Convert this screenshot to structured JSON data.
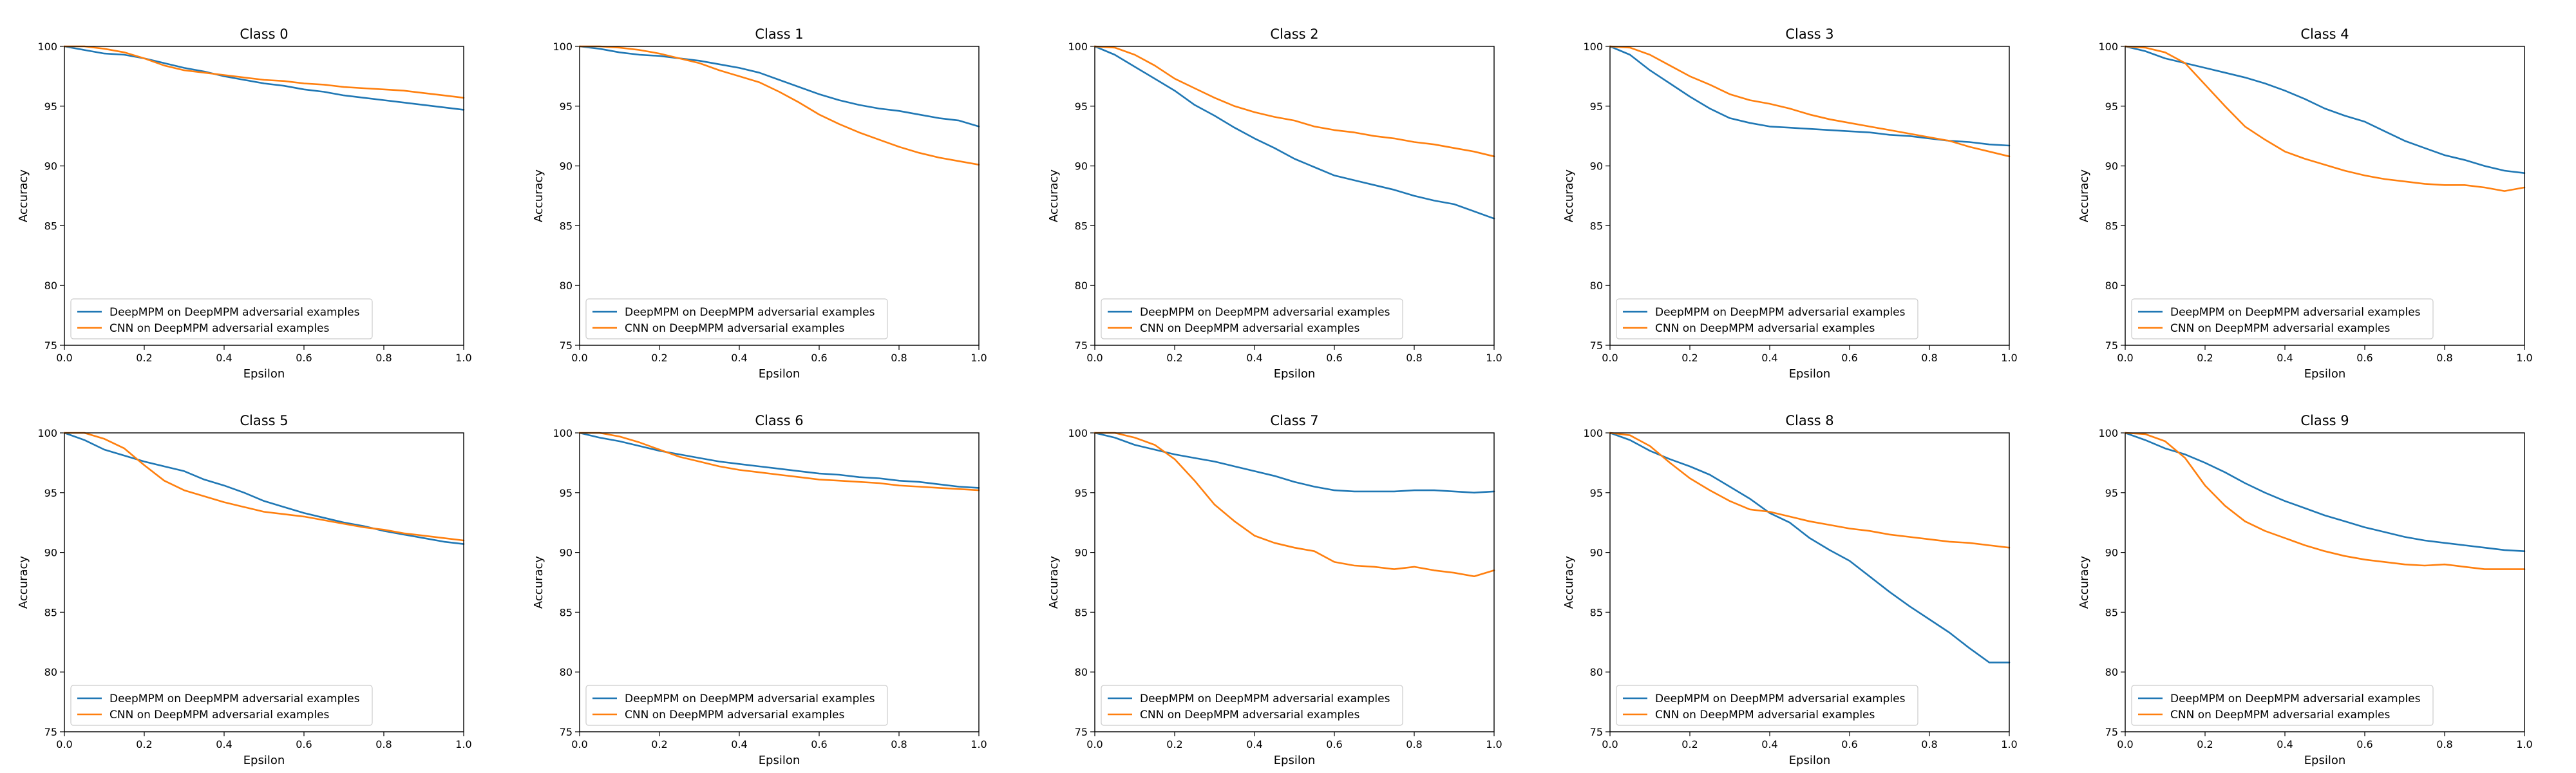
{
  "figure": {
    "series_colors": [
      "#1f77b4",
      "#ff7f0e"
    ]
  },
  "chart_data": [
    {
      "type": "line",
      "title": "Class 0",
      "xlabel": "Epsilon",
      "ylabel": "Accuracy",
      "xlim": [
        0,
        1
      ],
      "ylim": [
        75,
        100
      ],
      "xticks": [
        "0.0",
        "0.2",
        "0.4",
        "0.6",
        "0.8",
        "1.0"
      ],
      "yticks": [
        "75",
        "80",
        "85",
        "90",
        "95",
        "100"
      ],
      "legend_position": "lower-left",
      "x": [
        0,
        0.05,
        0.1,
        0.15,
        0.2,
        0.25,
        0.3,
        0.35,
        0.4,
        0.45,
        0.5,
        0.55,
        0.6,
        0.65,
        0.7,
        0.75,
        0.8,
        0.85,
        0.9,
        0.95,
        1.0
      ],
      "series": [
        {
          "name": "DeepMPM on DeepMPM adversarial examples",
          "values": [
            100,
            99.7,
            99.4,
            99.3,
            99.0,
            98.6,
            98.2,
            97.9,
            97.5,
            97.2,
            96.9,
            96.7,
            96.4,
            96.2,
            95.9,
            95.7,
            95.5,
            95.3,
            95.1,
            94.9,
            94.7
          ]
        },
        {
          "name": "CNN on DeepMPM adversarial examples",
          "values": [
            100,
            100,
            99.8,
            99.5,
            99.0,
            98.4,
            98.0,
            97.8,
            97.6,
            97.4,
            97.2,
            97.1,
            96.9,
            96.8,
            96.6,
            96.5,
            96.4,
            96.3,
            96.1,
            95.9,
            95.7
          ]
        }
      ]
    },
    {
      "type": "line",
      "title": "Class 1",
      "xlabel": "Epsilon",
      "ylabel": "Accuracy",
      "xlim": [
        0,
        1
      ],
      "ylim": [
        75,
        100
      ],
      "xticks": [
        "0.0",
        "0.2",
        "0.4",
        "0.6",
        "0.8",
        "1.0"
      ],
      "yticks": [
        "75",
        "80",
        "85",
        "90",
        "95",
        "100"
      ],
      "legend_position": "lower-left",
      "x": [
        0,
        0.05,
        0.1,
        0.15,
        0.2,
        0.25,
        0.3,
        0.35,
        0.4,
        0.45,
        0.5,
        0.55,
        0.6,
        0.65,
        0.7,
        0.75,
        0.8,
        0.85,
        0.9,
        0.95,
        1.0
      ],
      "series": [
        {
          "name": "DeepMPM on DeepMPM adversarial examples",
          "values": [
            100,
            99.8,
            99.5,
            99.3,
            99.2,
            99.0,
            98.8,
            98.5,
            98.2,
            97.8,
            97.2,
            96.6,
            96.0,
            95.5,
            95.1,
            94.8,
            94.6,
            94.3,
            94.0,
            93.8,
            93.3
          ]
        },
        {
          "name": "CNN on DeepMPM adversarial examples",
          "values": [
            100,
            100,
            99.9,
            99.7,
            99.4,
            99.0,
            98.6,
            98.0,
            97.5,
            97.0,
            96.2,
            95.3,
            94.3,
            93.5,
            92.8,
            92.2,
            91.6,
            91.1,
            90.7,
            90.4,
            90.1
          ]
        }
      ]
    },
    {
      "type": "line",
      "title": "Class 2",
      "xlabel": "Epsilon",
      "ylabel": "Accuracy",
      "xlim": [
        0,
        1
      ],
      "ylim": [
        75,
        100
      ],
      "xticks": [
        "0.0",
        "0.2",
        "0.4",
        "0.6",
        "0.8",
        "1.0"
      ],
      "yticks": [
        "75",
        "80",
        "85",
        "90",
        "95",
        "100"
      ],
      "legend_position": "lower-left",
      "x": [
        0,
        0.05,
        0.1,
        0.15,
        0.2,
        0.25,
        0.3,
        0.35,
        0.4,
        0.45,
        0.5,
        0.55,
        0.6,
        0.65,
        0.7,
        0.75,
        0.8,
        0.85,
        0.9,
        0.95,
        1.0
      ],
      "series": [
        {
          "name": "DeepMPM on DeepMPM adversarial examples",
          "values": [
            100,
            99.3,
            98.3,
            97.3,
            96.3,
            95.1,
            94.2,
            93.2,
            92.3,
            91.5,
            90.6,
            89.9,
            89.2,
            88.8,
            88.4,
            88.0,
            87.5,
            87.1,
            86.8,
            86.2,
            85.6
          ]
        },
        {
          "name": "CNN on DeepMPM adversarial examples",
          "values": [
            100,
            99.9,
            99.3,
            98.4,
            97.3,
            96.5,
            95.7,
            95.0,
            94.5,
            94.1,
            93.8,
            93.3,
            93.0,
            92.8,
            92.5,
            92.3,
            92.0,
            91.8,
            91.5,
            91.2,
            90.8
          ]
        }
      ]
    },
    {
      "type": "line",
      "title": "Class 3",
      "xlabel": "Epsilon",
      "ylabel": "Accuracy",
      "xlim": [
        0,
        1
      ],
      "ylim": [
        75,
        100
      ],
      "xticks": [
        "0.0",
        "0.2",
        "0.4",
        "0.6",
        "0.8",
        "1.0"
      ],
      "yticks": [
        "75",
        "80",
        "85",
        "90",
        "95",
        "100"
      ],
      "legend_position": "lower-left",
      "x": [
        0,
        0.05,
        0.1,
        0.15,
        0.2,
        0.25,
        0.3,
        0.35,
        0.4,
        0.45,
        0.5,
        0.55,
        0.6,
        0.65,
        0.7,
        0.75,
        0.8,
        0.85,
        0.9,
        0.95,
        1.0
      ],
      "series": [
        {
          "name": "DeepMPM on DeepMPM adversarial examples",
          "values": [
            100,
            99.3,
            98.0,
            96.9,
            95.8,
            94.8,
            94.0,
            93.6,
            93.3,
            93.2,
            93.1,
            93.0,
            92.9,
            92.8,
            92.6,
            92.5,
            92.3,
            92.1,
            92.0,
            91.8,
            91.7
          ]
        },
        {
          "name": "CNN on DeepMPM adversarial examples",
          "values": [
            100,
            99.9,
            99.3,
            98.4,
            97.5,
            96.8,
            96.0,
            95.5,
            95.2,
            94.8,
            94.3,
            93.9,
            93.6,
            93.3,
            93.0,
            92.7,
            92.4,
            92.1,
            91.6,
            91.2,
            90.8
          ]
        }
      ]
    },
    {
      "type": "line",
      "title": "Class 4",
      "xlabel": "Epsilon",
      "ylabel": "Accuracy",
      "xlim": [
        0,
        1
      ],
      "ylim": [
        75,
        100
      ],
      "xticks": [
        "0.0",
        "0.2",
        "0.4",
        "0.6",
        "0.8",
        "1.0"
      ],
      "yticks": [
        "75",
        "80",
        "85",
        "90",
        "95",
        "100"
      ],
      "legend_position": "lower-left",
      "x": [
        0,
        0.05,
        0.1,
        0.15,
        0.2,
        0.25,
        0.3,
        0.35,
        0.4,
        0.45,
        0.5,
        0.55,
        0.6,
        0.65,
        0.7,
        0.75,
        0.8,
        0.85,
        0.9,
        0.95,
        1.0
      ],
      "series": [
        {
          "name": "DeepMPM on DeepMPM adversarial examples",
          "values": [
            100,
            99.6,
            99.0,
            98.6,
            98.2,
            97.8,
            97.4,
            96.9,
            96.3,
            95.6,
            94.8,
            94.2,
            93.7,
            92.9,
            92.1,
            91.5,
            90.9,
            90.5,
            90.0,
            89.6,
            89.4
          ]
        },
        {
          "name": "CNN on DeepMPM adversarial examples",
          "values": [
            100,
            99.9,
            99.5,
            98.6,
            96.8,
            95.0,
            93.3,
            92.2,
            91.2,
            90.6,
            90.1,
            89.6,
            89.2,
            88.9,
            88.7,
            88.5,
            88.4,
            88.4,
            88.2,
            87.9,
            88.2
          ]
        }
      ]
    },
    {
      "type": "line",
      "title": "Class 5",
      "xlabel": "Epsilon",
      "ylabel": "Accuracy",
      "xlim": [
        0,
        1
      ],
      "ylim": [
        75,
        100
      ],
      "xticks": [
        "0.0",
        "0.2",
        "0.4",
        "0.6",
        "0.8",
        "1.0"
      ],
      "yticks": [
        "75",
        "80",
        "85",
        "90",
        "95",
        "100"
      ],
      "legend_position": "lower-left",
      "x": [
        0,
        0.05,
        0.1,
        0.15,
        0.2,
        0.25,
        0.3,
        0.35,
        0.4,
        0.45,
        0.5,
        0.55,
        0.6,
        0.65,
        0.7,
        0.75,
        0.8,
        0.85,
        0.9,
        0.95,
        1.0
      ],
      "series": [
        {
          "name": "DeepMPM on DeepMPM adversarial examples",
          "values": [
            100,
            99.4,
            98.6,
            98.1,
            97.6,
            97.2,
            96.8,
            96.1,
            95.6,
            95.0,
            94.3,
            93.8,
            93.3,
            92.9,
            92.5,
            92.2,
            91.8,
            91.5,
            91.2,
            90.9,
            90.7
          ]
        },
        {
          "name": "CNN on DeepMPM adversarial examples",
          "values": [
            100,
            100,
            99.5,
            98.7,
            97.3,
            96.0,
            95.2,
            94.7,
            94.2,
            93.8,
            93.4,
            93.2,
            93.0,
            92.7,
            92.4,
            92.1,
            91.9,
            91.6,
            91.4,
            91.2,
            91.0
          ]
        }
      ]
    },
    {
      "type": "line",
      "title": "Class 6",
      "xlabel": "Epsilon",
      "ylabel": "Accuracy",
      "xlim": [
        0,
        1
      ],
      "ylim": [
        75,
        100
      ],
      "xticks": [
        "0.0",
        "0.2",
        "0.4",
        "0.6",
        "0.8",
        "1.0"
      ],
      "yticks": [
        "75",
        "80",
        "85",
        "90",
        "95",
        "100"
      ],
      "legend_position": "lower-left",
      "x": [
        0,
        0.05,
        0.1,
        0.15,
        0.2,
        0.25,
        0.3,
        0.35,
        0.4,
        0.45,
        0.5,
        0.55,
        0.6,
        0.65,
        0.7,
        0.75,
        0.8,
        0.85,
        0.9,
        0.95,
        1.0
      ],
      "series": [
        {
          "name": "DeepMPM on DeepMPM adversarial examples",
          "values": [
            100,
            99.6,
            99.3,
            98.9,
            98.5,
            98.2,
            97.9,
            97.6,
            97.4,
            97.2,
            97.0,
            96.8,
            96.6,
            96.5,
            96.3,
            96.2,
            96.0,
            95.9,
            95.7,
            95.5,
            95.4
          ]
        },
        {
          "name": "CNN on DeepMPM adversarial examples",
          "values": [
            100,
            100,
            99.7,
            99.2,
            98.6,
            98.0,
            97.6,
            97.2,
            96.9,
            96.7,
            96.5,
            96.3,
            96.1,
            96.0,
            95.9,
            95.8,
            95.6,
            95.5,
            95.4,
            95.3,
            95.2
          ]
        }
      ]
    },
    {
      "type": "line",
      "title": "Class 7",
      "xlabel": "Epsilon",
      "ylabel": "Accuracy",
      "xlim": [
        0,
        1
      ],
      "ylim": [
        75,
        100
      ],
      "xticks": [
        "0.0",
        "0.2",
        "0.4",
        "0.6",
        "0.8",
        "1.0"
      ],
      "yticks": [
        "75",
        "80",
        "85",
        "90",
        "95",
        "100"
      ],
      "legend_position": "lower-left",
      "x": [
        0,
        0.05,
        0.1,
        0.15,
        0.2,
        0.25,
        0.3,
        0.35,
        0.4,
        0.45,
        0.5,
        0.55,
        0.6,
        0.65,
        0.7,
        0.75,
        0.8,
        0.85,
        0.9,
        0.95,
        1.0
      ],
      "series": [
        {
          "name": "DeepMPM on DeepMPM adversarial examples",
          "values": [
            100,
            99.6,
            99.0,
            98.6,
            98.2,
            97.9,
            97.6,
            97.2,
            96.8,
            96.4,
            95.9,
            95.5,
            95.2,
            95.1,
            95.1,
            95.1,
            95.2,
            95.2,
            95.1,
            95.0,
            95.1
          ]
        },
        {
          "name": "CNN on DeepMPM adversarial examples",
          "values": [
            100,
            100,
            99.6,
            99.0,
            97.8,
            96.0,
            94.0,
            92.6,
            91.4,
            90.8,
            90.4,
            90.1,
            89.2,
            88.9,
            88.8,
            88.6,
            88.8,
            88.5,
            88.3,
            88.0,
            88.5
          ]
        }
      ]
    },
    {
      "type": "line",
      "title": "Class 8",
      "xlabel": "Epsilon",
      "ylabel": "Accuracy",
      "xlim": [
        0,
        1
      ],
      "ylim": [
        75,
        100
      ],
      "xticks": [
        "0.0",
        "0.2",
        "0.4",
        "0.6",
        "0.8",
        "1.0"
      ],
      "yticks": [
        "75",
        "80",
        "85",
        "90",
        "95",
        "100"
      ],
      "legend_position": "lower-left",
      "x": [
        0,
        0.05,
        0.1,
        0.15,
        0.2,
        0.25,
        0.3,
        0.35,
        0.4,
        0.45,
        0.5,
        0.55,
        0.6,
        0.65,
        0.7,
        0.75,
        0.8,
        0.85,
        0.9,
        0.95,
        1.0
      ],
      "series": [
        {
          "name": "DeepMPM on DeepMPM adversarial examples",
          "values": [
            100,
            99.4,
            98.5,
            97.8,
            97.2,
            96.5,
            95.5,
            94.5,
            93.3,
            92.5,
            91.2,
            90.2,
            89.3,
            88.0,
            86.7,
            85.5,
            84.4,
            83.3,
            82.0,
            80.8,
            80.8
          ]
        },
        {
          "name": "CNN on DeepMPM adversarial examples",
          "values": [
            100,
            99.8,
            98.9,
            97.5,
            96.2,
            95.2,
            94.3,
            93.6,
            93.4,
            93.0,
            92.6,
            92.3,
            92.0,
            91.8,
            91.5,
            91.3,
            91.1,
            90.9,
            90.8,
            90.6,
            90.4
          ]
        }
      ]
    },
    {
      "type": "line",
      "title": "Class 9",
      "xlabel": "Epsilon",
      "ylabel": "Accuracy",
      "xlim": [
        0,
        1
      ],
      "ylim": [
        75,
        100
      ],
      "xticks": [
        "0.0",
        "0.2",
        "0.4",
        "0.6",
        "0.8",
        "1.0"
      ],
      "yticks": [
        "75",
        "80",
        "85",
        "90",
        "95",
        "100"
      ],
      "legend_position": "lower-left",
      "x": [
        0,
        0.05,
        0.1,
        0.15,
        0.2,
        0.25,
        0.3,
        0.35,
        0.4,
        0.45,
        0.5,
        0.55,
        0.6,
        0.65,
        0.7,
        0.75,
        0.8,
        0.85,
        0.9,
        0.95,
        1.0
      ],
      "series": [
        {
          "name": "DeepMPM on DeepMPM adversarial examples",
          "values": [
            100,
            99.4,
            98.7,
            98.2,
            97.5,
            96.7,
            95.8,
            95.0,
            94.3,
            93.7,
            93.1,
            92.6,
            92.1,
            91.7,
            91.3,
            91.0,
            90.8,
            90.6,
            90.4,
            90.2,
            90.1
          ]
        },
        {
          "name": "CNN on DeepMPM adversarial examples",
          "values": [
            100,
            99.9,
            99.3,
            97.9,
            95.6,
            93.9,
            92.6,
            91.8,
            91.2,
            90.6,
            90.1,
            89.7,
            89.4,
            89.2,
            89.0,
            88.9,
            89.0,
            88.8,
            88.6,
            88.6,
            88.6
          ]
        }
      ]
    }
  ]
}
